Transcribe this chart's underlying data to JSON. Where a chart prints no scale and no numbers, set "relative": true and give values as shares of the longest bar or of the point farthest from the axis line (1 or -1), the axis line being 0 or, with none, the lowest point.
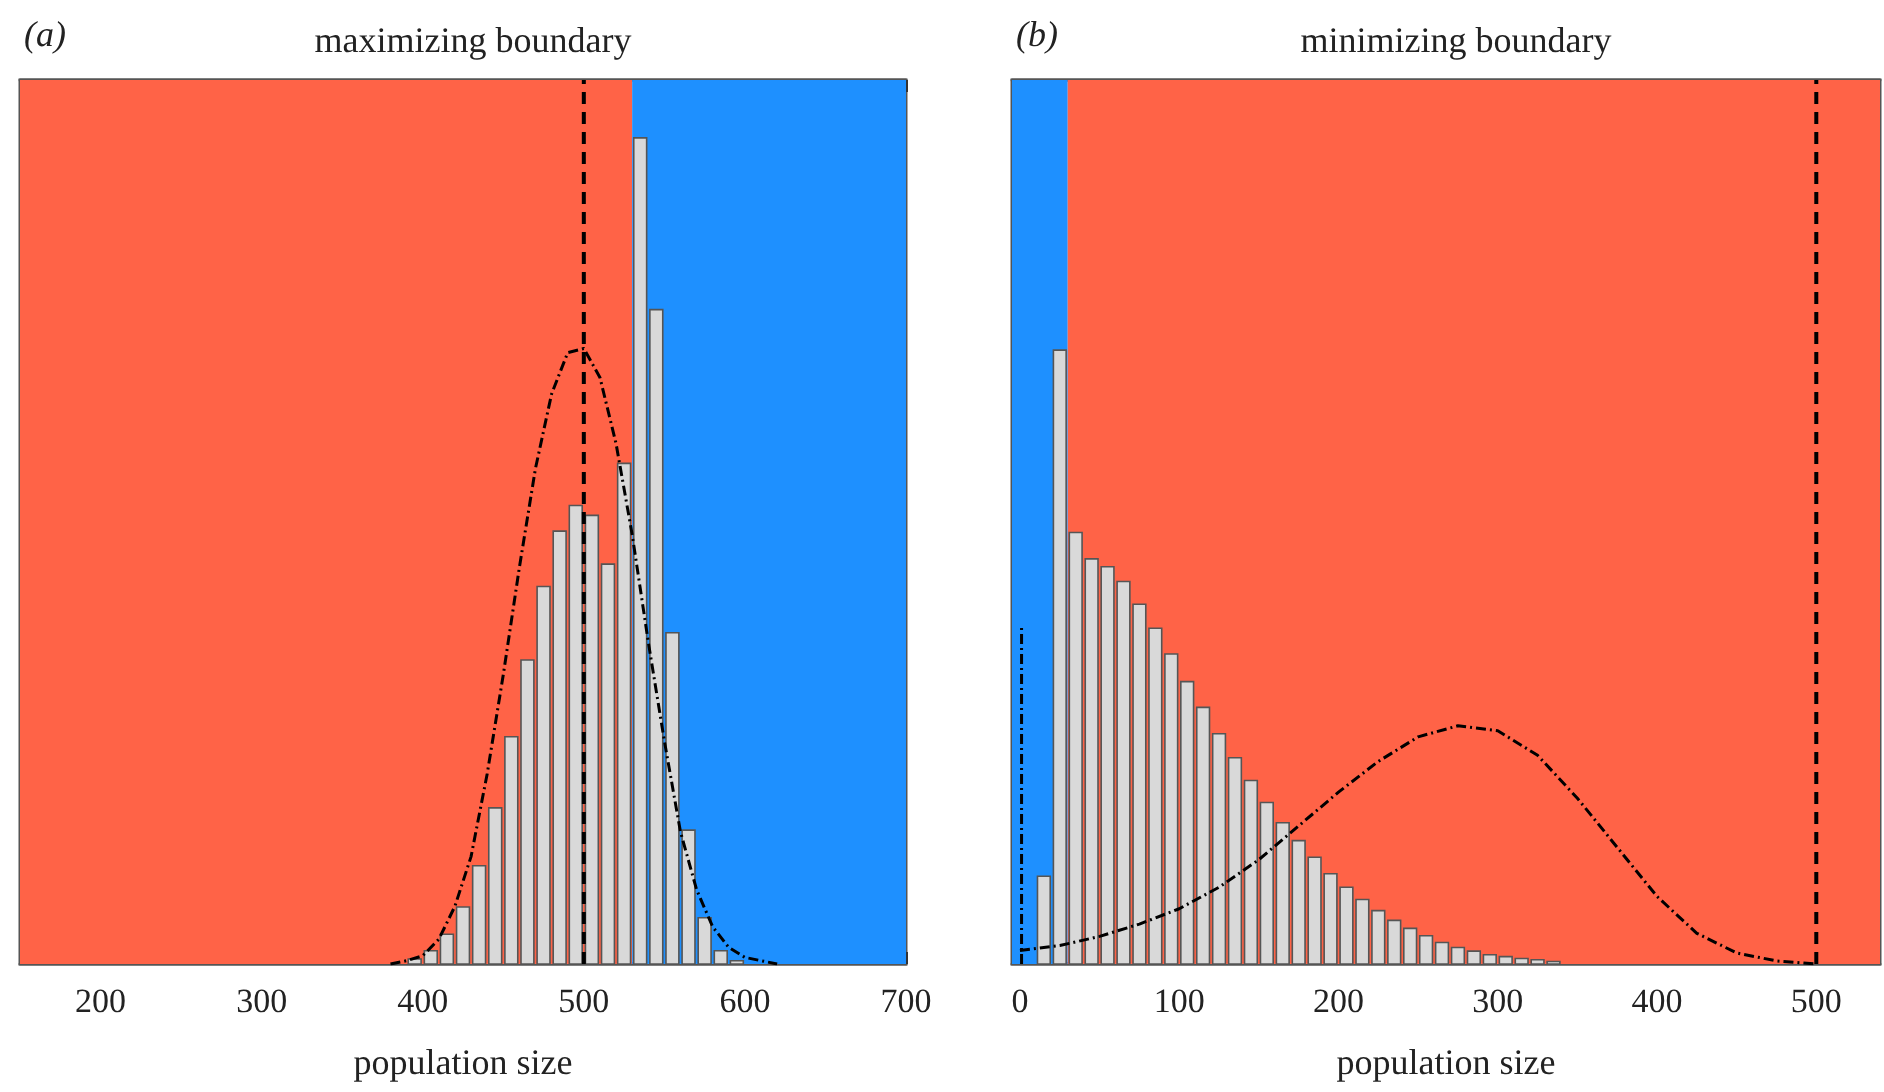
{
  "chart_data": [
    {
      "type": "histogram",
      "title": "maximizing boundary",
      "xlabel": "population size",
      "annotations": [
        "(a)"
      ],
      "relative": true,
      "xlim": [
        150,
        700
      ],
      "xticks": [
        200,
        300,
        400,
        500,
        600,
        700
      ],
      "bands": [
        {
          "axis": "x",
          "from": 150,
          "to": 530,
          "color": "#ff6347"
        },
        {
          "axis": "x",
          "from": 530,
          "to": 700,
          "color": "#1e90ff"
        }
      ],
      "ref_lines": [
        {
          "axis": "x",
          "value": 500,
          "color": "#000000",
          "line_style": "dashed"
        }
      ],
      "series": [
        {
          "type": "histogram",
          "color": "#d9d9d9",
          "bins": [
            390,
            400,
            410,
            420,
            430,
            440,
            450,
            460,
            470,
            480,
            490,
            500,
            510,
            520,
            530,
            540,
            550,
            560,
            570,
            580,
            590,
            600
          ],
          "values": [
            0.006,
            0.016,
            0.036,
            0.069,
            0.119,
            0.189,
            0.275,
            0.368,
            0.457,
            0.524,
            0.555,
            0.543,
            0.484,
            0.606,
            1.0,
            0.792,
            0.401,
            0.162,
            0.056,
            0.016,
            0.004
          ]
        },
        {
          "type": "line",
          "color": "#000000",
          "line_style": "dotted",
          "x": [
            380,
            390,
            400,
            410,
            420,
            430,
            440,
            450,
            460,
            470,
            480,
            490,
            500,
            510,
            520,
            530,
            540,
            550,
            560,
            570,
            580,
            590,
            600,
            620
          ],
          "values": [
            0.0,
            0.004,
            0.01,
            0.03,
            0.07,
            0.13,
            0.23,
            0.35,
            0.48,
            0.6,
            0.69,
            0.74,
            0.745,
            0.71,
            0.63,
            0.52,
            0.39,
            0.27,
            0.16,
            0.09,
            0.045,
            0.02,
            0.008,
            0.0
          ]
        }
      ]
    },
    {
      "type": "histogram",
      "title": "minimizing boundary",
      "xlabel": "population size",
      "annotations": [
        "(b)"
      ],
      "relative": true,
      "xlim": [
        -5,
        540
      ],
      "xticks": [
        0,
        100,
        200,
        300,
        400,
        500
      ],
      "bands": [
        {
          "axis": "x",
          "from": -5,
          "to": 30,
          "color": "#1e90ff"
        },
        {
          "axis": "x",
          "from": 30,
          "to": 540,
          "color": "#ff6347"
        }
      ],
      "ref_lines": [
        {
          "axis": "x",
          "value": 500,
          "color": "#000000",
          "line_style": "dashed"
        }
      ],
      "series": [
        {
          "type": "histogram",
          "color": "#d9d9d9",
          "bins": [
            10,
            20,
            30,
            40,
            50,
            60,
            70,
            80,
            90,
            100,
            110,
            120,
            130,
            140,
            150,
            160,
            170,
            180,
            190,
            200,
            210,
            220,
            230,
            240,
            250,
            260,
            270,
            280,
            290,
            300,
            310,
            320,
            330,
            340
          ],
          "values": [
            0.143,
            1.0,
            0.703,
            0.66,
            0.647,
            0.623,
            0.586,
            0.547,
            0.505,
            0.46,
            0.418,
            0.375,
            0.336,
            0.299,
            0.263,
            0.23,
            0.201,
            0.174,
            0.147,
            0.125,
            0.105,
            0.087,
            0.071,
            0.058,
            0.046,
            0.035,
            0.027,
            0.021,
            0.015,
            0.012,
            0.009,
            0.007,
            0.004
          ]
        },
        {
          "type": "line",
          "color": "#000000",
          "line_style": "dotted",
          "x": [
            0,
            25,
            50,
            75,
            100,
            125,
            150,
            175,
            200,
            225,
            250,
            275,
            300,
            325,
            350,
            375,
            400,
            425,
            450,
            475,
            500
          ],
          "values": [
            0.022,
            0.03,
            0.045,
            0.065,
            0.09,
            0.125,
            0.17,
            0.225,
            0.28,
            0.33,
            0.37,
            0.388,
            0.38,
            0.34,
            0.27,
            0.19,
            0.11,
            0.05,
            0.018,
            0.005,
            0.0
          ]
        },
        {
          "type": "line",
          "color": "#000000",
          "line_style": "dotted",
          "x": [
            1,
            1
          ],
          "values": [
            0,
            0.55
          ]
        }
      ]
    }
  ]
}
